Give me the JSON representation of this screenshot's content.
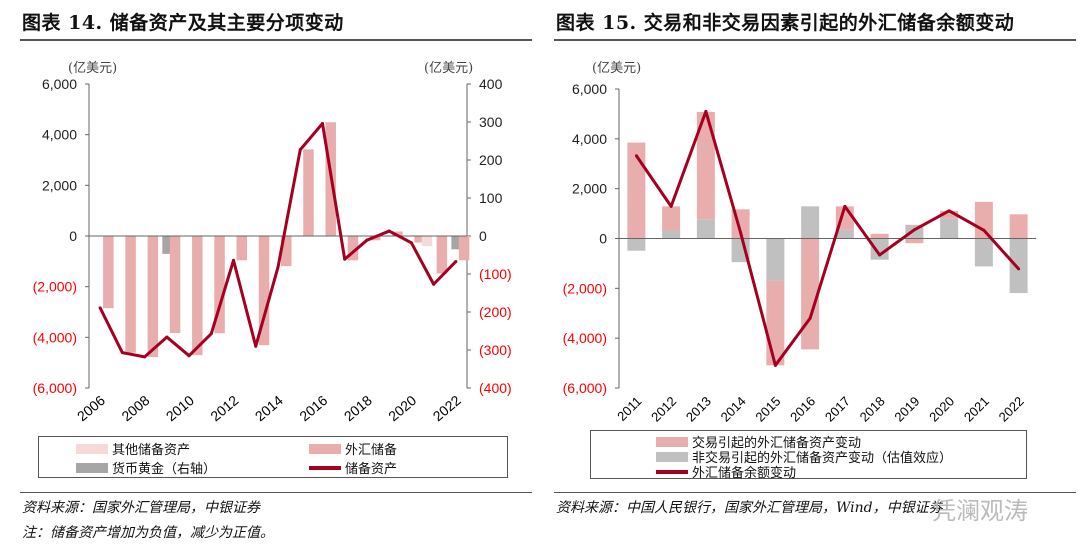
{
  "left": {
    "title": "图表 14. 储备资产及其主要分项变动",
    "legend": [
      "其他储备资产",
      "外汇储备",
      "货币黄金（右轴）",
      "储备资产"
    ],
    "source": "资料来源：国家外汇管理局，中银证券",
    "note": "注：储备资产增加为负值，减少为正值。"
  },
  "right": {
    "title": "图表 15. 交易和非交易因素引起的外汇储备余额变动",
    "legend": [
      "交易引起的外汇储备资产变动",
      "非交易引起的外汇储备资产变动（估值效应）",
      "外汇储备余额变动"
    ],
    "source": "资料来源：中国人民银行，国家外汇管理局，Wind，中银证券"
  },
  "watermark": "凭澜观涛",
  "colors": {
    "fx": "#e8aeae",
    "other": "#f6d9d9",
    "gold": "#a6a6a6",
    "line": "#a50021",
    "nontx": "#c0c0c0",
    "neg": "#ff0000"
  },
  "chart_data": [
    {
      "type": "bar+line",
      "title": "储备资产及其主要分项变动",
      "ylabel": "(亿美元)",
      "ylabel_right": "(亿美元)",
      "ylim": [
        -6000,
        6000
      ],
      "ylim_right": [
        -400,
        400
      ],
      "yticks": [
        "6,000",
        "4,000",
        "2,000",
        "0",
        "(2,000)",
        "(4,000)",
        "(6,000)"
      ],
      "yticks_right": [
        "400",
        "300",
        "200",
        "100",
        "0",
        "(100)",
        "(200)",
        "(300)",
        "(400)"
      ],
      "x": [
        2006,
        2007,
        2008,
        2009,
        2010,
        2011,
        2012,
        2013,
        2014,
        2015,
        2016,
        2017,
        2018,
        2019,
        2020,
        2021,
        2022
      ],
      "xticks": [
        "2006",
        "2008",
        "2010",
        "2012",
        "2014",
        "2016",
        "2018",
        "2020",
        "2022"
      ],
      "series": [
        {
          "name": "其他储备资产",
          "axis": "left",
          "values": [
            0,
            0,
            0,
            0,
            0,
            0,
            0,
            0,
            0,
            0,
            0,
            0,
            0,
            0,
            0,
            -400,
            0
          ]
        },
        {
          "name": "货币黄金（右轴）",
          "axis": "right",
          "values": [
            0,
            0,
            0,
            -47,
            0,
            0,
            0,
            0,
            0,
            0,
            0,
            0,
            0,
            0,
            0,
            0,
            -35
          ]
        },
        {
          "name": "外汇储备",
          "axis": "left",
          "values": [
            -2850,
            -4610,
            -4780,
            -3830,
            -4700,
            -3840,
            -960,
            -4310,
            -1190,
            3420,
            4490,
            -960,
            -170,
            180,
            -260,
            -1480,
            -960
          ]
        },
        {
          "name": "储备资产",
          "axis": "right",
          "type": "line",
          "values": [
            -189,
            -307,
            -318,
            -266,
            -315,
            -257,
            -64,
            -290,
            -82,
            227,
            296,
            -61,
            -11,
            13,
            -18,
            -127,
            -67
          ]
        }
      ]
    },
    {
      "type": "stacked-bar+line",
      "title": "交易和非交易因素引起的外汇储备余额变动",
      "ylabel": "(亿美元)",
      "ylim": [
        -6000,
        6000
      ],
      "yticks": [
        "6,000",
        "4,000",
        "2,000",
        "0",
        "(2,000)",
        "(4,000)",
        "(6,000)"
      ],
      "x": [
        "2011",
        "2012",
        "2013",
        "2014",
        "2015",
        "2016",
        "2017",
        "2018",
        "2019",
        "2020",
        "2021",
        "2022"
      ],
      "series": [
        {
          "name": "交易引起的外汇储备资产变动",
          "values": [
            3850,
            970,
            4310,
            1170,
            -3400,
            -4450,
            940,
            190,
            -190,
            300,
            1470,
            970
          ]
        },
        {
          "name": "非交易引起的外汇储备资产变动（估值效应）",
          "values": [
            -490,
            320,
            770,
            -950,
            -1690,
            1290,
            350,
            -850,
            550,
            810,
            -1120,
            -2190
          ]
        },
        {
          "name": "外汇储备余额变动",
          "type": "line",
          "values": [
            3320,
            1290,
            5100,
            230,
            -5090,
            -3200,
            1290,
            -660,
            350,
            1110,
            330,
            -1220
          ]
        }
      ]
    }
  ]
}
